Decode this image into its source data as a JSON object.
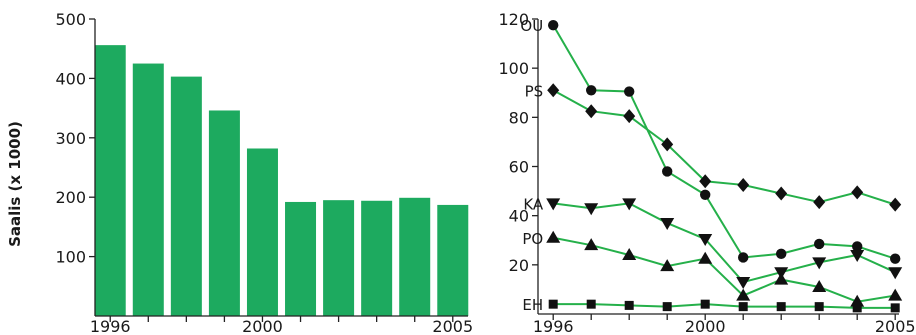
{
  "colors": {
    "bar": "#1daa5f",
    "line": "#25b04a",
    "marker": "#111111",
    "axis": "#222222"
  },
  "chart_data": [
    {
      "type": "bar",
      "title": "",
      "xlabel": "",
      "ylabel": "Saalis (x 1000)",
      "x": [
        1996,
        1997,
        1998,
        1999,
        2000,
        2001,
        2002,
        2003,
        2004,
        2005
      ],
      "values": [
        456,
        425,
        403,
        346,
        282,
        192,
        195,
        194,
        199,
        187
      ],
      "ylim": [
        0,
        500
      ],
      "xlim": [
        1995.6,
        2005.4
      ],
      "yticks": [
        100,
        200,
        300,
        400,
        500
      ],
      "xticks": [
        1996,
        2000,
        2005
      ],
      "grid": false
    },
    {
      "type": "line",
      "title": "",
      "xlabel": "",
      "ylabel": "",
      "x": [
        1996,
        1997,
        1998,
        1999,
        2000,
        2001,
        2002,
        2003,
        2004,
        2005
      ],
      "ylim": [
        0,
        120
      ],
      "xlim": [
        1995.6,
        2005.1
      ],
      "yticks": [
        20,
        40,
        60,
        80,
        100,
        120
      ],
      "xticks": [
        1996,
        2000,
        2005
      ],
      "grid": false,
      "series": [
        {
          "name": "OU",
          "marker": "circle",
          "values": [
            117.5,
            91,
            90.5,
            58,
            48.5,
            23,
            24.5,
            28.5,
            27.5,
            22.5
          ]
        },
        {
          "name": "PS",
          "marker": "diamond",
          "values": [
            91,
            82.5,
            80.5,
            69,
            54,
            52.5,
            49,
            45.5,
            49.5,
            44.5
          ]
        },
        {
          "name": "KA",
          "marker": "triangle-down",
          "values": [
            45,
            43,
            45,
            37,
            30.5,
            13,
            17,
            21,
            24,
            17
          ]
        },
        {
          "name": "PO",
          "marker": "triangle-up",
          "values": [
            31,
            28,
            24,
            19.5,
            22.5,
            7.5,
            14,
            11,
            5,
            7.5
          ]
        },
        {
          "name": "EH",
          "marker": "square",
          "values": [
            4,
            4,
            3.5,
            3,
            4,
            3,
            3,
            3,
            2.5,
            2.5
          ]
        }
      ]
    }
  ]
}
